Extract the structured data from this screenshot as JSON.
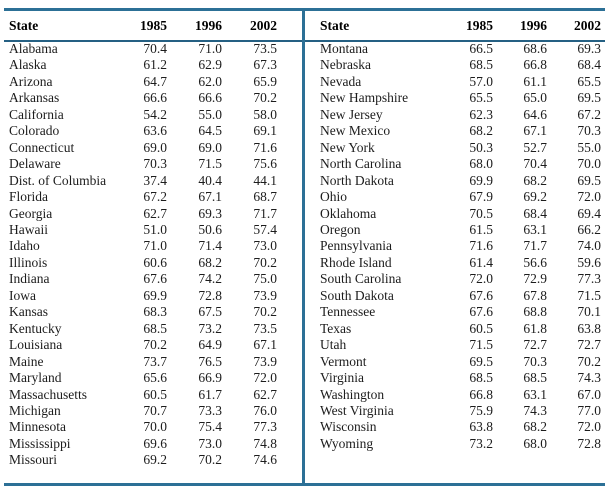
{
  "table": {
    "columns": [
      "State",
      "1985",
      "1996",
      "2002"
    ],
    "left_rows": [
      {
        "state": "Alabama",
        "values": [
          "70.4",
          "71.0",
          "73.5"
        ]
      },
      {
        "state": "Alaska",
        "values": [
          "61.2",
          "62.9",
          "67.3"
        ]
      },
      {
        "state": "Arizona",
        "values": [
          "64.7",
          "62.0",
          "65.9"
        ]
      },
      {
        "state": "Arkansas",
        "values": [
          "66.6",
          "66.6",
          "70.2"
        ]
      },
      {
        "state": "California",
        "values": [
          "54.2",
          "55.0",
          "58.0"
        ]
      },
      {
        "state": "Colorado",
        "values": [
          "63.6",
          "64.5",
          "69.1"
        ]
      },
      {
        "state": "Connecticut",
        "values": [
          "69.0",
          "69.0",
          "71.6"
        ]
      },
      {
        "state": "Delaware",
        "values": [
          "70.3",
          "71.5",
          "75.6"
        ]
      },
      {
        "state": "Dist. of Columbia",
        "values": [
          "37.4",
          "40.4",
          "44.1"
        ]
      },
      {
        "state": "Florida",
        "values": [
          "67.2",
          "67.1",
          "68.7"
        ]
      },
      {
        "state": "Georgia",
        "values": [
          "62.7",
          "69.3",
          "71.7"
        ]
      },
      {
        "state": "Hawaii",
        "values": [
          "51.0",
          "50.6",
          "57.4"
        ]
      },
      {
        "state": "Idaho",
        "values": [
          "71.0",
          "71.4",
          "73.0"
        ]
      },
      {
        "state": "Illinois",
        "values": [
          "60.6",
          "68.2",
          "70.2"
        ]
      },
      {
        "state": "Indiana",
        "values": [
          "67.6",
          "74.2",
          "75.0"
        ]
      },
      {
        "state": "Iowa",
        "values": [
          "69.9",
          "72.8",
          "73.9"
        ]
      },
      {
        "state": "Kansas",
        "values": [
          "68.3",
          "67.5",
          "70.2"
        ]
      },
      {
        "state": "Kentucky",
        "values": [
          "68.5",
          "73.2",
          "73.5"
        ]
      },
      {
        "state": "Louisiana",
        "values": [
          "70.2",
          "64.9",
          "67.1"
        ]
      },
      {
        "state": "Maine",
        "values": [
          "73.7",
          "76.5",
          "73.9"
        ]
      },
      {
        "state": "Maryland",
        "values": [
          "65.6",
          "66.9",
          "72.0"
        ]
      },
      {
        "state": "Massachusetts",
        "values": [
          "60.5",
          "61.7",
          "62.7"
        ]
      },
      {
        "state": "Michigan",
        "values": [
          "70.7",
          "73.3",
          "76.0"
        ]
      },
      {
        "state": "Minnesota",
        "values": [
          "70.0",
          "75.4",
          "77.3"
        ]
      },
      {
        "state": "Mississippi",
        "values": [
          "69.6",
          "73.0",
          "74.8"
        ]
      },
      {
        "state": "Missouri",
        "values": [
          "69.2",
          "70.2",
          "74.6"
        ]
      }
    ],
    "right_rows": [
      {
        "state": "Montana",
        "values": [
          "66.5",
          "68.6",
          "69.3"
        ]
      },
      {
        "state": "Nebraska",
        "values": [
          "68.5",
          "66.8",
          "68.4"
        ]
      },
      {
        "state": "Nevada",
        "values": [
          "57.0",
          "61.1",
          "65.5"
        ]
      },
      {
        "state": "New Hampshire",
        "values": [
          "65.5",
          "65.0",
          "69.5"
        ]
      },
      {
        "state": "New Jersey",
        "values": [
          "62.3",
          "64.6",
          "67.2"
        ]
      },
      {
        "state": "New Mexico",
        "values": [
          "68.2",
          "67.1",
          "70.3"
        ]
      },
      {
        "state": "New York",
        "values": [
          "50.3",
          "52.7",
          "55.0"
        ]
      },
      {
        "state": "North Carolina",
        "values": [
          "68.0",
          "70.4",
          "70.0"
        ]
      },
      {
        "state": "North Dakota",
        "values": [
          "69.9",
          "68.2",
          "69.5"
        ]
      },
      {
        "state": "Ohio",
        "values": [
          "67.9",
          "69.2",
          "72.0"
        ]
      },
      {
        "state": "Oklahoma",
        "values": [
          "70.5",
          "68.4",
          "69.4"
        ]
      },
      {
        "state": "Oregon",
        "values": [
          "61.5",
          "63.1",
          "66.2"
        ]
      },
      {
        "state": "Pennsylvania",
        "values": [
          "71.6",
          "71.7",
          "74.0"
        ]
      },
      {
        "state": "Rhode Island",
        "values": [
          "61.4",
          "56.6",
          "59.6"
        ]
      },
      {
        "state": "South Carolina",
        "values": [
          "72.0",
          "72.9",
          "77.3"
        ]
      },
      {
        "state": "South Dakota",
        "values": [
          "67.6",
          "67.8",
          "71.5"
        ]
      },
      {
        "state": "Tennessee",
        "values": [
          "67.6",
          "68.8",
          "70.1"
        ]
      },
      {
        "state": "Texas",
        "values": [
          "60.5",
          "61.8",
          "63.8"
        ]
      },
      {
        "state": "Utah",
        "values": [
          "71.5",
          "72.7",
          "72.7"
        ]
      },
      {
        "state": "Vermont",
        "values": [
          "69.5",
          "70.3",
          "70.2"
        ]
      },
      {
        "state": "Virginia",
        "values": [
          "68.5",
          "68.5",
          "74.3"
        ]
      },
      {
        "state": "Washington",
        "values": [
          "66.8",
          "63.1",
          "67.0"
        ]
      },
      {
        "state": "West Virginia",
        "values": [
          "75.9",
          "74.3",
          "77.0"
        ]
      },
      {
        "state": "Wisconsin",
        "values": [
          "63.8",
          "68.2",
          "72.0"
        ]
      },
      {
        "state": "Wyoming",
        "values": [
          "73.2",
          "68.0",
          "72.8"
        ]
      }
    ]
  },
  "colors": {
    "rule_teal": "#2c7096",
    "rule_dark": "#256083",
    "text": "#1c1c1c"
  }
}
